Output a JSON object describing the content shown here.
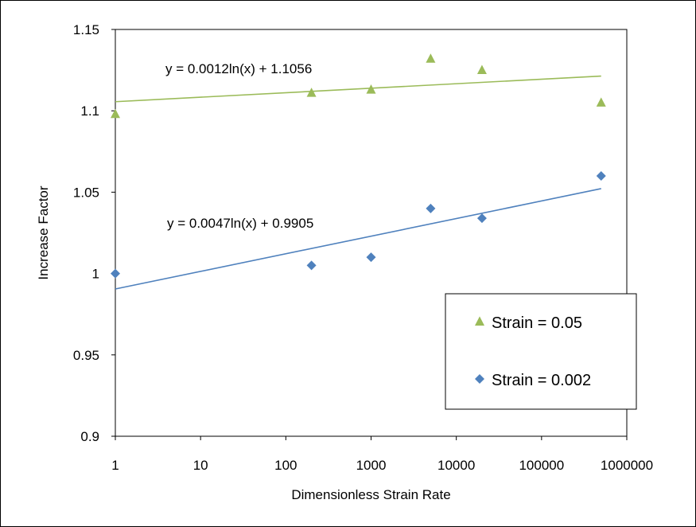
{
  "chart_data": {
    "type": "scatter",
    "title": "",
    "xlabel": "Dimensionless Strain Rate",
    "ylabel": "Increase Factor",
    "x_scale": "log",
    "xlim": [
      1,
      1000000
    ],
    "ylim": [
      0.9,
      1.15
    ],
    "x_tick_labels": [
      "1",
      "10",
      "100",
      "1000",
      "10000",
      "100000",
      "1000000"
    ],
    "y_tick_labels": [
      "0.9",
      "0.95",
      "1",
      "1.05",
      "1.1",
      "1.15"
    ],
    "grid": false,
    "legend_position": "bottom-right",
    "series": [
      {
        "name": "Strain = 0.05",
        "marker": "triangle",
        "color": "#9bbb59",
        "x": [
          1,
          200,
          1000,
          5000,
          20000,
          500000
        ],
        "y": [
          1.098,
          1.111,
          1.113,
          1.132,
          1.125,
          1.105
        ],
        "trendline": {
          "type": "log",
          "a": 0.0012,
          "b": 1.1056,
          "label": "y = 0.0012ln(x) + 1.1056"
        }
      },
      {
        "name": "Strain = 0.002",
        "marker": "diamond",
        "color": "#4f81bd",
        "x": [
          1,
          200,
          1000,
          5000,
          20000,
          500000
        ],
        "y": [
          1.0,
          1.005,
          1.01,
          1.04,
          1.034,
          1.06
        ],
        "trendline": {
          "type": "log",
          "a": 0.0047,
          "b": 0.9905,
          "label": "y = 0.0047ln(x) + 0.9905"
        }
      }
    ]
  }
}
